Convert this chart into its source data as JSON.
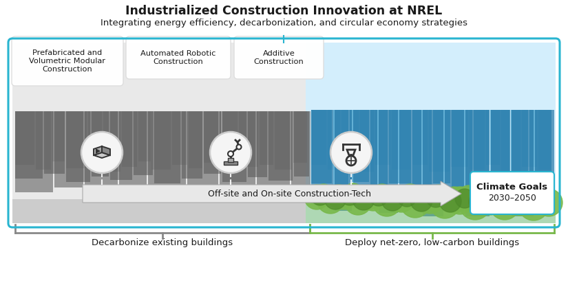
{
  "title": "Industrialized Construction Innovation at NREL",
  "subtitle": "Integrating energy efficiency, decarbonization, and circular economy strategies",
  "box_labels": [
    "Prefabricated and\nVolumetric Modular\nConstruction",
    "Automated Robotic\nConstruction",
    "Additive\nConstruction"
  ],
  "arrow_label": "Off-site and On-site Construction-Tech",
  "climate_label_bold": "Climate Goals",
  "climate_label_years": "2030–2050",
  "bottom_left_label": "Decarbonize existing buildings",
  "bottom_right_label": "Deploy net-zero, low-carbon buildings",
  "bg_color": "#ffffff",
  "sky_blue_light": "#cceeff",
  "sky_blue_mid": "#66c2e8",
  "sky_blue_dark": "#2a9cc8",
  "building_gray_dark": "#555555",
  "building_gray_mid": "#6e6e6e",
  "building_gray_light": "#999999",
  "building_gray_pale": "#b5b5b5",
  "building_blue_dark": "#1a6fa0",
  "building_blue_mid": "#2a8fc0",
  "building_blue_light": "#5bbfdc",
  "building_blue_pale": "#a0d8ef",
  "green_foliage": "#78b84a",
  "green_dark": "#4e8a2a",
  "green_light": "#9dd060",
  "border_teal": "#29b5d0",
  "border_gray": "#888888",
  "border_green": "#78b84a",
  "box_fill": "#ffffff",
  "box_edge": "#cccccc",
  "circle_fill": "#f5f5f5",
  "circle_edge": "#cccccc",
  "arrow_fill": "#e8e8e8",
  "arrow_edge": "#aaaaaa",
  "text_dark": "#1a1a1a",
  "panel_left_bg": "#d0d0d0",
  "panel_right_bg": "#b8dff0",
  "panel_border": "#29b5d0",
  "gray_ground": "#b0b0b0",
  "blue_sky_bg": "#d5eef8"
}
